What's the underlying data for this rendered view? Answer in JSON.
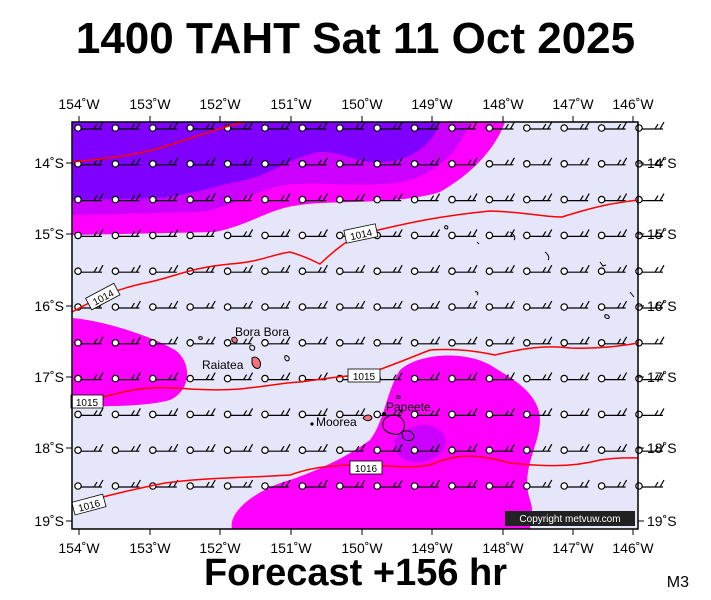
{
  "title": "1400 TAHT Sat 11 Oct 2025",
  "subtitle": "Forecast +156 hr",
  "model_code": "M3",
  "copyright": "Copyright metvuw.com",
  "colors": {
    "background": "#e6e6fa",
    "rain_light": "#ff00ff",
    "rain_medium": "#cc00ff",
    "rain_heavy": "#8000ff",
    "isobar": "#ff0000",
    "coast": "#000000"
  },
  "axes": {
    "lon_labels_top": [
      "154˚W",
      "153˚W",
      "152˚W",
      "151˚W",
      "150˚W",
      "149˚W",
      "148˚W",
      "147˚W",
      "146˚W"
    ],
    "lon_labels_bottom": [
      "154˚W",
      "153˚W",
      "152˚W",
      "151˚W",
      "150˚W",
      "149˚W",
      "148˚W",
      "147˚W",
      "146˚W"
    ],
    "lat_labels_left": [
      "14˚S",
      "15˚S",
      "16˚S",
      "17˚S",
      "18˚S",
      "19˚S"
    ],
    "lat_labels_right": [
      "14˚S",
      "15˚S",
      "16˚S",
      "17˚S",
      "18˚S",
      "19˚S"
    ]
  },
  "isobars": [
    {
      "label": "1014"
    },
    {
      "label": "1014"
    },
    {
      "label": "1015"
    },
    {
      "label": "1015"
    },
    {
      "label": "1016"
    },
    {
      "label": "1016"
    }
  ],
  "places": [
    {
      "name": "Bora Bora"
    },
    {
      "name": "Raiatea"
    },
    {
      "name": "Papeete"
    },
    {
      "name": "Moorea"
    }
  ]
}
